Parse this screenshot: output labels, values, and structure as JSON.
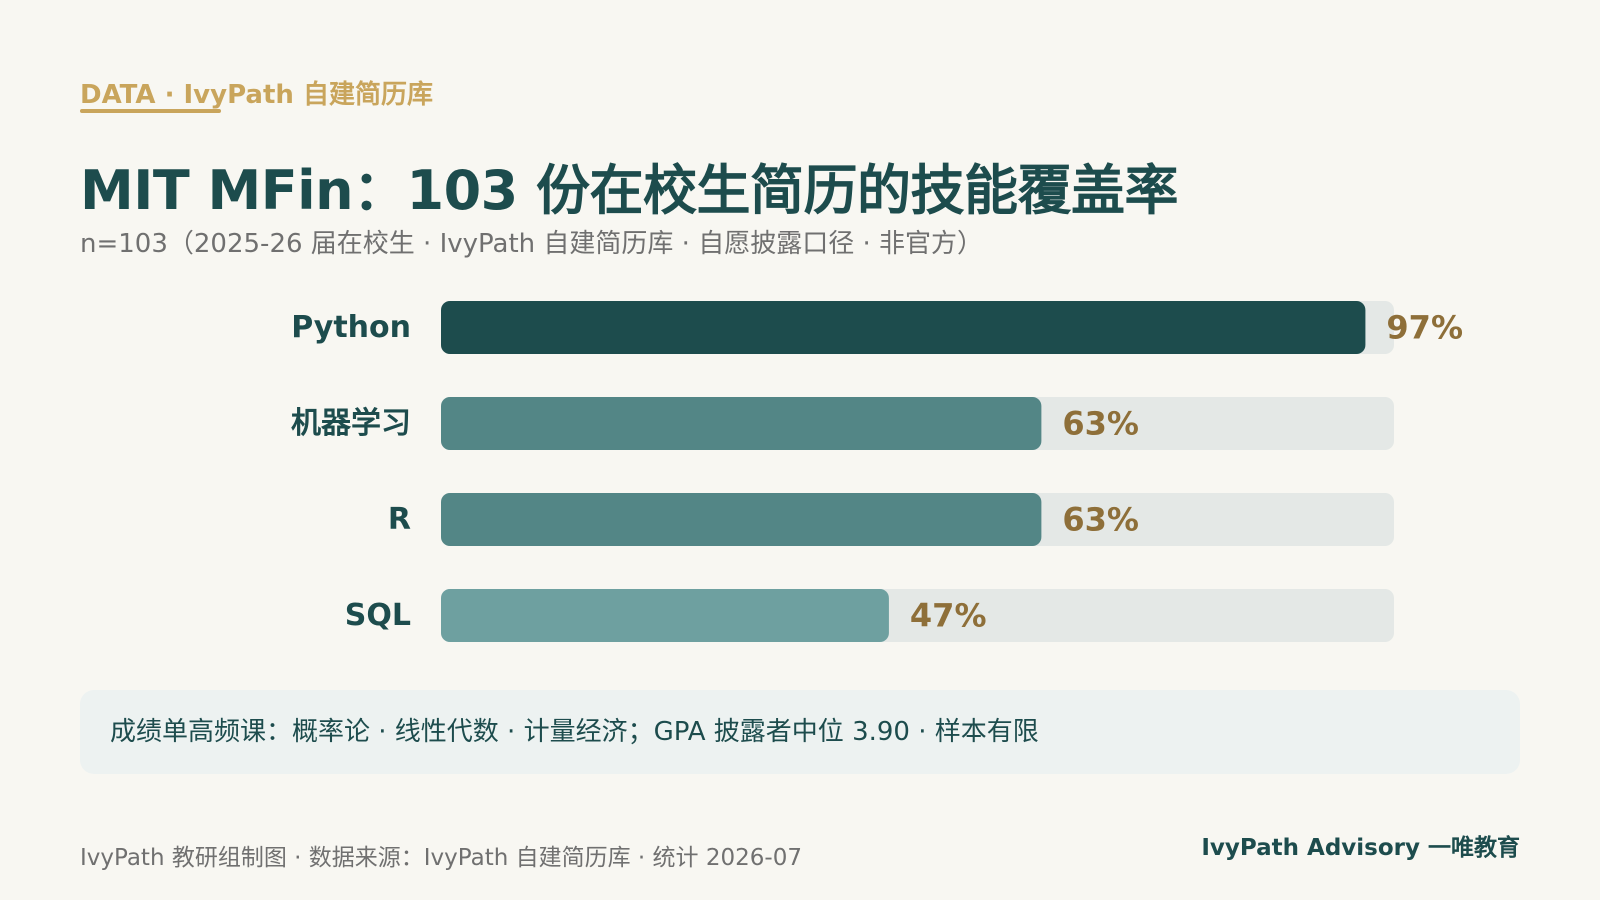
{
  "header": {
    "kicker": "DATA · IvyPath 自建简历库",
    "title": "MIT MFin：103 份在校生简历的技能覆盖率",
    "subtitle": "n=103（2025-26 届在校生 · IvyPath 自建简历库 · 自愿披露口径 · 非官方）"
  },
  "chart_data": {
    "type": "bar",
    "orientation": "horizontal",
    "categories": [
      "Python",
      "机器学习",
      "R",
      "SQL"
    ],
    "values": [
      97,
      63,
      63,
      47
    ],
    "value_labels": [
      "97%",
      "63%",
      "63%",
      "47%"
    ],
    "xlim": [
      0,
      100
    ],
    "unit": "%",
    "grid": false,
    "bar_colors": [
      "#1d4c4d",
      "#538686",
      "#538686",
      "#6ea0a0"
    ],
    "track_color": "#e4e8e6",
    "label_color": "#1d4c4d",
    "value_color": "#8e6f39"
  },
  "note": {
    "text": "成绩单高频课：概率论 · 线性代数 · 计量经济；GPA 披露者中位 3.90 · 样本有限"
  },
  "footer": {
    "left": "IvyPath 教研组制图 · 数据来源：IvyPath 自建简历库 · 统计 2026-07",
    "right": "IvyPath Advisory 一唯教育"
  }
}
